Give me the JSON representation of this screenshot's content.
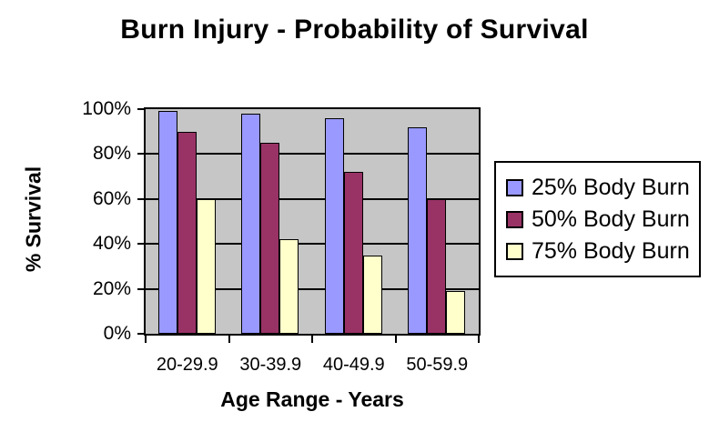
{
  "page": {
    "background": "#FFFFFF"
  },
  "chart_data": {
    "type": "bar",
    "title": "Burn Injury - Probability of Survival",
    "xlabel": "Age Range - Years",
    "ylabel": "% Survival",
    "categories": [
      "20-29.9",
      "30-39.9",
      "40-49.9",
      "50-59.9"
    ],
    "series": [
      {
        "name": "25% Body Burn",
        "color": "#9999FF",
        "values": [
          99,
          98,
          96,
          92
        ]
      },
      {
        "name": "50% Body Burn",
        "color": "#993366",
        "values": [
          90,
          85,
          72,
          60
        ]
      },
      {
        "name": "75% Body Burn",
        "color": "#FFFFCC",
        "values": [
          60,
          42,
          35,
          19
        ]
      }
    ],
    "ylim": [
      0,
      100
    ],
    "yticks": [
      {
        "label": "100%",
        "value": 100
      },
      {
        "label": "80%",
        "value": 80
      },
      {
        "label": "60%",
        "value": 60
      },
      {
        "label": "40%",
        "value": 40
      },
      {
        "label": "20%",
        "value": 20
      },
      {
        "label": "0%",
        "value": 0
      }
    ],
    "gridlines": [
      20,
      40,
      60,
      80
    ],
    "grid": true,
    "legend_position": "right",
    "plot_background": "#C6C6C6",
    "axis_color": "#000000",
    "bar_outline_color": "#000000"
  }
}
